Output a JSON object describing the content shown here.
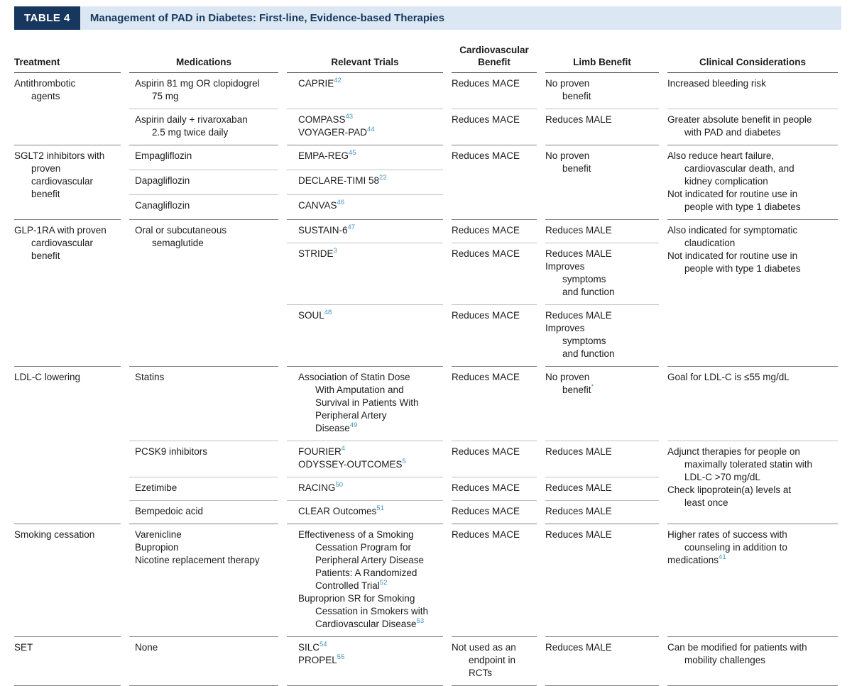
{
  "title": {
    "badge": "TABLE 4",
    "text": "Management of PAD in Diabetes: First-line, Evidence-based Therapies"
  },
  "colors": {
    "navy": "#17375e",
    "title_strip_bg": "#dbe8f4",
    "reference_blue": "#4292c6",
    "rule_dark": "#818181",
    "rule_light": "#c2c2c2"
  },
  "columns": {
    "treatment": "Treatment",
    "medications": "Medications",
    "trials": "Relevant Trials",
    "cv": "Cardiovascular Benefit",
    "limb": "Limb Benefit",
    "clinical": "Clinical Considerations"
  },
  "sections": [
    {
      "treatment": [
        {
          "t": "Antithrombotic"
        },
        {
          "t": "agents",
          "i": 1
        }
      ],
      "rows": [
        {
          "meds": [
            {
              "t": "Aspirin 81 mg OR clopidogrel"
            },
            {
              "t": "75 mg",
              "i": 1
            }
          ],
          "trials": [
            {
              "t": "CAPRIE",
              "r": "42"
            }
          ],
          "cv": [
            {
              "t": "Reduces MACE"
            }
          ],
          "limb": [
            {
              "t": "No proven"
            },
            {
              "t": "benefit",
              "i": 1
            }
          ],
          "clinical": [
            {
              "t": "Increased bleeding risk"
            }
          ]
        },
        {
          "meds": [
            {
              "t": "Aspirin daily + rivaroxaban"
            },
            {
              "t": "2.5 mg twice daily",
              "i": 1
            }
          ],
          "trials": [
            {
              "t": "COMPASS",
              "r": "43"
            },
            {
              "t": "VOYAGER-PAD",
              "r": "44"
            }
          ],
          "cv": [
            {
              "t": "Reduces MACE"
            }
          ],
          "limb": [
            {
              "t": "Reduces MALE"
            }
          ],
          "clinical": [
            {
              "t": "Greater absolute benefit in people"
            },
            {
              "t": "with PAD and diabetes",
              "i": 1
            }
          ]
        }
      ]
    },
    {
      "treatment": [
        {
          "t": "SGLT2 inhibitors with"
        },
        {
          "t": "proven",
          "i": 1
        },
        {
          "t": "cardiovascular",
          "i": 1
        },
        {
          "t": "benefit",
          "i": 1
        }
      ],
      "rows": [
        {
          "meds": [
            {
              "t": "Empagliflozin"
            }
          ],
          "trials": [
            {
              "t": "EMPA-REG",
              "r": "45"
            }
          ]
        },
        {
          "meds": [
            {
              "t": "Dapagliflozin"
            }
          ],
          "trials": [
            {
              "t": "DECLARE-TIMI 58",
              "r": "22"
            }
          ]
        },
        {
          "meds": [
            {
              "t": "Canagliflozin"
            }
          ],
          "trials": [
            {
              "t": "CANVAS",
              "r": "46"
            }
          ]
        }
      ],
      "cv": [
        {
          "t": "Reduces MACE"
        }
      ],
      "limb": [
        {
          "t": "No proven"
        },
        {
          "t": "benefit",
          "i": 1
        }
      ],
      "clinical": [
        {
          "t": "Also reduce heart failure,"
        },
        {
          "t": "cardiovascular death, and",
          "i": 1
        },
        {
          "t": "kidney complication",
          "i": 1
        },
        {
          "t": "Not indicated for routine use in"
        },
        {
          "t": "people with type 1 diabetes",
          "i": 1
        }
      ]
    },
    {
      "treatment": [
        {
          "t": "GLP-1RA with proven"
        },
        {
          "t": "cardiovascular",
          "i": 1
        },
        {
          "t": "benefit",
          "i": 1
        }
      ],
      "meds": [
        {
          "t": "Oral or subcutaneous"
        },
        {
          "t": "semaglutide",
          "i": 1
        }
      ],
      "rows": [
        {
          "trials": [
            {
              "t": "SUSTAIN-6",
              "r": "47"
            }
          ],
          "cv": [
            {
              "t": "Reduces MACE"
            }
          ],
          "limb": [
            {
              "t": "Reduces MALE"
            }
          ]
        },
        {
          "trials": [
            {
              "t": "STRIDE",
              "r": "3"
            }
          ],
          "cv": [
            {
              "t": "Reduces MACE"
            }
          ],
          "limb": [
            {
              "t": "Reduces MALE"
            },
            {
              "t": "Improves"
            },
            {
              "t": "symptoms",
              "i": 1
            },
            {
              "t": "and function",
              "i": 1
            }
          ]
        },
        {
          "trials": [
            {
              "t": "SOUL",
              "r": "48"
            }
          ],
          "cv": [
            {
              "t": "Reduces MACE"
            }
          ],
          "limb": [
            {
              "t": "Reduces MALE"
            },
            {
              "t": "Improves"
            },
            {
              "t": "symptoms",
              "i": 1
            },
            {
              "t": "and function",
              "i": 1
            }
          ]
        }
      ],
      "clinical": [
        {
          "t": "Also indicated for symptomatic"
        },
        {
          "t": "claudication",
          "i": 1
        },
        {
          "t": "Not indicated for routine use in"
        },
        {
          "t": "people with type 1 diabetes",
          "i": 1
        }
      ]
    },
    {
      "treatment": [
        {
          "t": "LDL-C lowering"
        }
      ],
      "rows": [
        {
          "meds": [
            {
              "t": "Statins"
            }
          ],
          "trials": [
            {
              "t": "Association of Statin Dose"
            },
            {
              "t": "With Amputation and",
              "i": 1
            },
            {
              "t": "Survival in Patients With",
              "i": 1
            },
            {
              "t": "Peripheral Artery",
              "i": 1
            },
            {
              "t": "Disease",
              "i": 1,
              "r": "49"
            }
          ],
          "cv": [
            {
              "t": "Reduces MACE"
            }
          ],
          "limb": [
            {
              "t": "No proven"
            },
            {
              "t": "benefit",
              "i": 1,
              "r": "*"
            }
          ],
          "clinical": [
            {
              "t": "Goal for LDL-C is ≤55 mg/dL"
            }
          ]
        },
        {
          "meds": [
            {
              "t": "PCSK9 inhibitors"
            }
          ],
          "trials": [
            {
              "t": "FOURIER",
              "r": "4"
            },
            {
              "t": "ODYSSEY-OUTCOMES",
              "r": "5"
            }
          ],
          "cv": [
            {
              "t": "Reduces MACE"
            }
          ],
          "limb": [
            {
              "t": "Reduces MALE"
            }
          ],
          "clinical": [
            {
              "t": "Adjunct therapies for people on"
            },
            {
              "t": "maximally tolerated statin with",
              "i": 1
            },
            {
              "t": "LDL-C >70 mg/dL",
              "i": 1
            },
            {
              "t": "Check lipoprotein(a) levels at"
            },
            {
              "t": "least once",
              "i": 1
            }
          ]
        },
        {
          "meds": [
            {
              "t": "Ezetimibe"
            }
          ],
          "trials": [
            {
              "t": "RACING",
              "r": "50"
            }
          ],
          "cv": [
            {
              "t": "Reduces MACE"
            }
          ],
          "limb": [
            {
              "t": "Reduces MALE"
            }
          ]
        },
        {
          "meds": [
            {
              "t": "Bempedoic acid"
            }
          ],
          "trials": [
            {
              "t": "CLEAR Outcomes",
              "r": "51"
            }
          ],
          "cv": [
            {
              "t": "Reduces MACE"
            }
          ],
          "limb": [
            {
              "t": "Reduces MALE"
            }
          ]
        }
      ]
    },
    {
      "treatment": [
        {
          "t": "Smoking cessation"
        }
      ],
      "rows": [
        {
          "meds": [
            {
              "t": "Varenicline"
            },
            {
              "t": "Bupropion"
            },
            {
              "t": "Nicotine replacement therapy"
            }
          ],
          "trials": [
            {
              "t": "Effectiveness of a Smoking"
            },
            {
              "t": "Cessation Program for",
              "i": 1
            },
            {
              "t": "Peripheral Artery Disease",
              "i": 1
            },
            {
              "t": "Patients: A Randomized",
              "i": 1
            },
            {
              "t": "Controlled Trial",
              "i": 1,
              "r": "52"
            },
            {
              "t": "Buproprion SR for Smoking"
            },
            {
              "t": "Cessation in Smokers with",
              "i": 1
            },
            {
              "t": "Cardiovascular Disease",
              "i": 1,
              "r": "53"
            }
          ],
          "cv": [
            {
              "t": "Reduces MACE"
            }
          ],
          "limb": [
            {
              "t": "Reduces MALE"
            }
          ],
          "clinical": [
            {
              "t": "Higher rates of success with"
            },
            {
              "t": "counseling in addition to",
              "i": 1
            },
            {
              "t": "medications",
              "r": "41"
            }
          ]
        }
      ]
    },
    {
      "treatment": [
        {
          "t": "SET"
        }
      ],
      "rows": [
        {
          "meds": [
            {
              "t": "None"
            }
          ],
          "trials": [
            {
              "t": "SILC",
              "r": "54"
            },
            {
              "t": "PROPEL",
              "r": "55"
            }
          ],
          "cv": [
            {
              "t": "Not used as an"
            },
            {
              "t": "endpoint in",
              "i": 1
            },
            {
              "t": "RCTs",
              "i": 1
            }
          ],
          "limb": [
            {
              "t": "Reduces MALE"
            }
          ],
          "clinical": [
            {
              "t": "Can be modified for patients with"
            },
            {
              "t": "mobility challenges",
              "i": 1
            }
          ]
        }
      ]
    }
  ]
}
